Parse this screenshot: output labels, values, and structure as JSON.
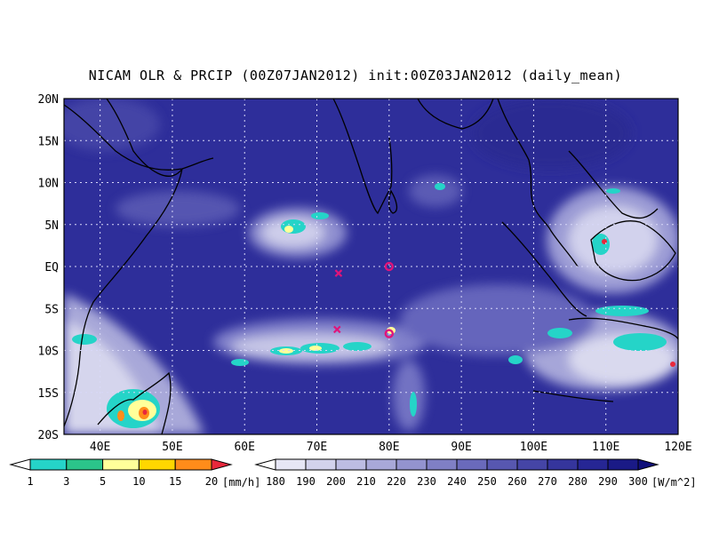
{
  "title": "NICAM OLR & PRCIP (00Z07JAN2012) init:00Z03JAN2012 (daily_mean)",
  "map": {
    "lat_labels": [
      "20N",
      "15N",
      "10N",
      "5N",
      "EQ",
      "5S",
      "10S",
      "15S",
      "20S"
    ],
    "lon_labels": [
      "40E",
      "50E",
      "60E",
      "70E",
      "80E",
      "90E",
      "100E",
      "110E",
      "120E"
    ],
    "extent": {
      "lon": [
        35,
        120
      ],
      "lat": [
        -20,
        20
      ]
    }
  },
  "markers": [
    {
      "symbol": "x",
      "lon": 73,
      "lat": -0.8,
      "color": "#e0147a"
    },
    {
      "symbol": "o",
      "lon": 80,
      "lat": 0,
      "color": "#e0147a"
    },
    {
      "symbol": "x",
      "lon": 72.8,
      "lat": -7.5,
      "color": "#e0147a"
    },
    {
      "symbol": "o",
      "lon": 80,
      "lat": -8,
      "color": "#e0147a"
    }
  ],
  "precip_legend": {
    "labels": [
      "1",
      "3",
      "5",
      "10",
      "15",
      "20"
    ],
    "unit": "[mm/h]",
    "colors": [
      "#ffffff",
      "#25d4c8",
      "#2bc48a",
      "#ffff9a",
      "#ffd700",
      "#ff8c1a",
      "#e8283c"
    ]
  },
  "olr_legend": {
    "labels": [
      "180",
      "190",
      "200",
      "210",
      "220",
      "230",
      "240",
      "250",
      "260",
      "270",
      "280",
      "290",
      "300"
    ],
    "unit": "[W/m^2]",
    "colors": [
      "#ffffff",
      "#e6e6f5",
      "#d2d2ec",
      "#bdbde3",
      "#a8a8d9",
      "#9393cf",
      "#7f7fc5",
      "#6a6abb",
      "#5757b0",
      "#4545a6",
      "#35359c",
      "#262694",
      "#1a1a86",
      "#10107a"
    ]
  }
}
